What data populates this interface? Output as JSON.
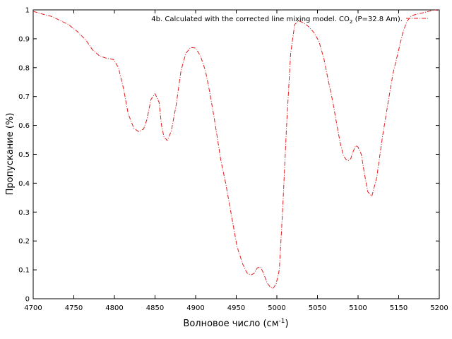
{
  "chart_data": {
    "type": "line",
    "title": "",
    "xlabel": "Волновое число (см",
    "xlabel_sup": "-1",
    "xlabel_end": ")",
    "ylabel": "Пропускание (%)",
    "xlim": [
      4700,
      5200
    ],
    "ylim": [
      0,
      1
    ],
    "grid": false,
    "legend_placement": "top-right",
    "x_ticks": [
      4700,
      4750,
      4800,
      4850,
      4900,
      4950,
      5000,
      5050,
      5100,
      5150,
      5200
    ],
    "y_ticks": [
      0,
      0.1,
      0.2,
      0.3,
      0.4,
      0.5,
      0.6,
      0.7,
      0.8,
      0.9,
      1
    ],
    "y_tick_labels": [
      "0",
      "0.1",
      "0.2",
      "0.3",
      "0.4",
      "0.5",
      "0.6",
      "0.7",
      "0.8",
      "0.9",
      "1"
    ],
    "legend": {
      "text_before": "4b. Calculated with the corrected line mixing model. CO",
      "text_sub": "2",
      "text_after": " (P=32.8 Am)."
    },
    "series": [
      {
        "color": "#e41a1c",
        "style": "dash-dot",
        "x": [
          4700,
          4712,
          4722,
          4732,
          4743,
          4754,
          4765,
          4773,
          4782,
          4790,
          4799,
          4805,
          4811,
          4817,
          4824,
          4830,
          4836,
          4840,
          4845,
          4850,
          4855,
          4858,
          4861,
          4865,
          4870,
          4876,
          4882,
          4888,
          4894,
          4900,
          4906,
          4912,
          4917,
          4922,
          4926,
          4931,
          4937,
          4944,
          4951,
          4958,
          4963,
          4968,
          4972,
          4976,
          4980,
          4984,
          4988,
          4992,
          4995,
          4999,
          5003,
          5007,
          5012,
          5017,
          5022,
          5027,
          5033,
          5040,
          5046,
          5052,
          5058,
          5063,
          5069,
          5074,
          5078,
          5082,
          5085,
          5088,
          5091,
          5094,
          5097,
          5100,
          5104,
          5108,
          5112,
          5117,
          5123,
          5130,
          5137,
          5143,
          5149,
          5155,
          5160,
          5166,
          5172,
          5180,
          5187,
          5194,
          5198
        ],
        "y": [
          0.995,
          0.985,
          0.978,
          0.965,
          0.95,
          0.926,
          0.895,
          0.862,
          0.84,
          0.833,
          0.828,
          0.8,
          0.73,
          0.64,
          0.59,
          0.578,
          0.588,
          0.62,
          0.69,
          0.71,
          0.68,
          0.6,
          0.56,
          0.548,
          0.58,
          0.67,
          0.79,
          0.85,
          0.87,
          0.868,
          0.84,
          0.79,
          0.72,
          0.64,
          0.57,
          0.48,
          0.4,
          0.29,
          0.18,
          0.12,
          0.09,
          0.082,
          0.088,
          0.107,
          0.11,
          0.085,
          0.055,
          0.04,
          0.035,
          0.05,
          0.1,
          0.3,
          0.6,
          0.85,
          0.95,
          0.962,
          0.955,
          0.94,
          0.92,
          0.89,
          0.83,
          0.76,
          0.68,
          0.6,
          0.54,
          0.495,
          0.483,
          0.478,
          0.485,
          0.51,
          0.53,
          0.525,
          0.5,
          0.43,
          0.37,
          0.355,
          0.42,
          0.56,
          0.68,
          0.78,
          0.85,
          0.92,
          0.96,
          0.98,
          0.985,
          0.99,
          0.995,
          1.0,
          0.998
        ]
      }
    ]
  }
}
